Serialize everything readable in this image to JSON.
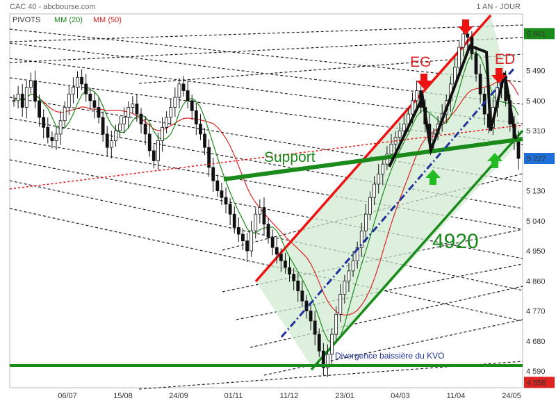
{
  "header": {
    "title": "CAC 40 - abcbourse.com",
    "period": "1 AN - JOUR",
    "legend": [
      {
        "label": "PIVOTS",
        "color": "#333333"
      },
      {
        "label": "MM (20)",
        "color": "#1a8a1a"
      },
      {
        "label": "MM (50)",
        "color": "#dd2222"
      }
    ]
  },
  "chart_data": {
    "type": "line",
    "title": "CAC 40 - abcbourse.com",
    "subtitle": "1 AN - JOUR",
    "xlabel": "",
    "ylabel": "",
    "ylim": [
      4540,
      5660
    ],
    "grid": false,
    "x_ticks": [
      "06/07",
      "15/08",
      "24/09",
      "01/11",
      "11/12",
      "23/01",
      "04/03",
      "11/04",
      "24/05"
    ],
    "y_ticks": [
      4590,
      4680,
      4770,
      4860,
      4950,
      5040,
      5130,
      5227,
      5310,
      5400,
      5490,
      5601
    ],
    "price_labels": [
      {
        "label": "5 601",
        "value": 5601,
        "style": "current"
      },
      {
        "label": "5 227",
        "value": 5227,
        "style": "last"
      },
      {
        "label": "4 556",
        "value": 4556,
        "style": "support"
      }
    ],
    "series": [
      {
        "name": "PIVOTS",
        "color": "#333333"
      },
      {
        "name": "MM (20)",
        "color": "#1a8a1a"
      },
      {
        "name": "MM (50)",
        "color": "#dd2222"
      }
    ],
    "price_close": [
      5400,
      5420,
      5380,
      5440,
      5460,
      5400,
      5350,
      5320,
      5290,
      5280,
      5300,
      5340,
      5380,
      5420,
      5440,
      5470,
      5450,
      5420,
      5400,
      5380,
      5350,
      5300,
      5260,
      5280,
      5310,
      5330,
      5350,
      5380,
      5390,
      5360,
      5330,
      5300,
      5250,
      5220,
      5280,
      5320,
      5350,
      5380,
      5410,
      5450,
      5430,
      5400,
      5370,
      5330,
      5300,
      5260,
      5200,
      5160,
      5130,
      5110,
      5090,
      5060,
      5020,
      5000,
      4980,
      4950,
      5010,
      5060,
      5080,
      5030,
      4990,
      4960,
      4940,
      4920,
      4900,
      4880,
      4860,
      4830,
      4800,
      4770,
      4740,
      4700,
      4650,
      4600,
      4640,
      4700,
      4760,
      4820,
      4860,
      4890,
      4920,
      4960,
      5010,
      5060,
      5110,
      5150,
      5180,
      5210,
      5240,
      5270,
      5290,
      5310,
      5330,
      5360,
      5400,
      5430,
      5380,
      5330,
      5280,
      5300,
      5330,
      5360,
      5400,
      5450,
      5500,
      5560,
      5600,
      5590,
      5540,
      5480,
      5420,
      5360,
      5320,
      5380,
      5440,
      5460,
      5400,
      5330,
      5280,
      5227
    ],
    "annotations": [
      {
        "text": "EG",
        "kind": "label"
      },
      {
        "text": "ED",
        "kind": "label"
      },
      {
        "text": "Support",
        "kind": "label"
      },
      {
        "text": "4920",
        "kind": "label"
      },
      {
        "text": "Divergence baissière du KVO",
        "kind": "label"
      }
    ]
  }
}
